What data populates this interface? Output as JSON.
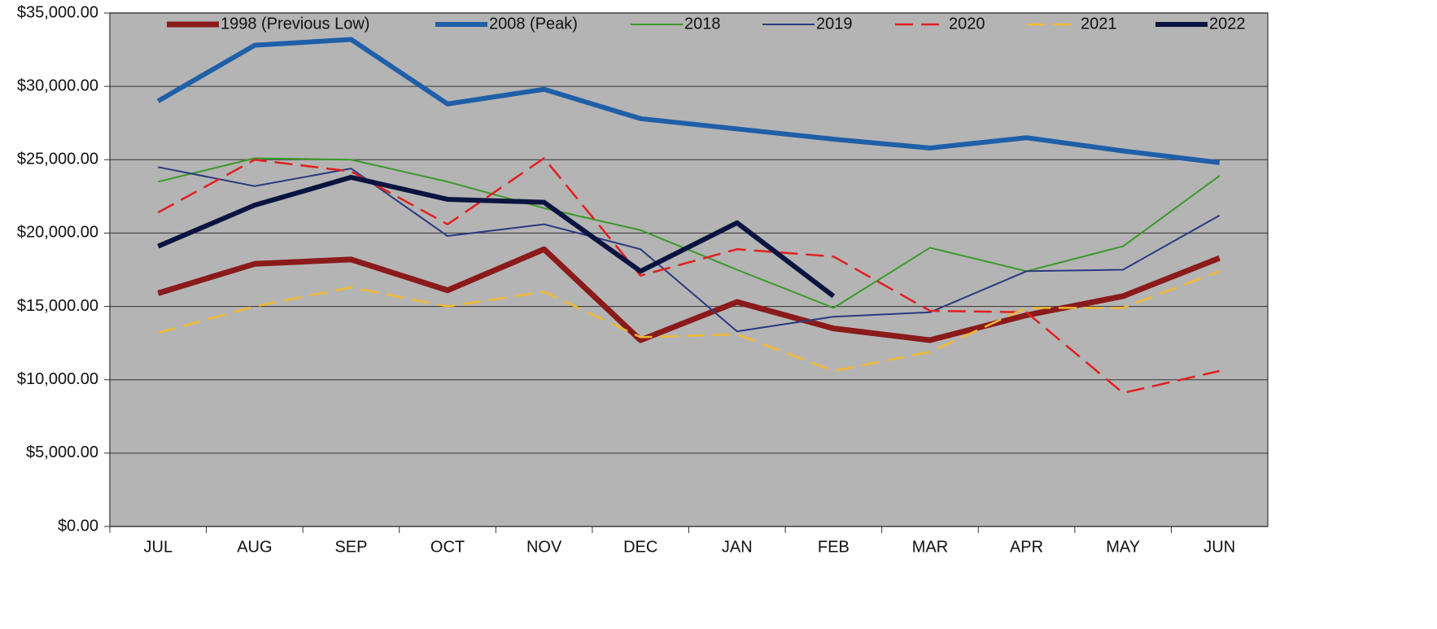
{
  "chart_data": {
    "type": "line",
    "categories": [
      "JUL",
      "AUG",
      "SEP",
      "OCT",
      "NOV",
      "DEC",
      "JAN",
      "FEB",
      "MAR",
      "APR",
      "MAY",
      "JUN"
    ],
    "series": [
      {
        "name": "1998 (Previous Low)",
        "color": "#8b1a1a",
        "width": 7,
        "dashed": false,
        "values": [
          15900,
          17900,
          18200,
          16100,
          18900,
          12700,
          15300,
          13500,
          12700,
          14400,
          15700,
          18300
        ]
      },
      {
        "name": "2008 (Peak)",
        "color": "#1f5fa8",
        "width": 6,
        "dashed": false,
        "values": [
          29000,
          32800,
          33200,
          28800,
          29800,
          27800,
          27100,
          26400,
          25800,
          26500,
          25600,
          24800
        ]
      },
      {
        "name": "2018",
        "color": "#3a9a2a",
        "width": 2,
        "dashed": false,
        "values": [
          23500,
          25100,
          25000,
          23500,
          21700,
          20200,
          17500,
          14900,
          19000,
          17400,
          19100,
          23900
        ]
      },
      {
        "name": "2019",
        "color": "#2b3a80",
        "width": 2,
        "dashed": false,
        "values": [
          24500,
          23200,
          24400,
          19800,
          20600,
          18900,
          13300,
          14300,
          14600,
          17400,
          17500,
          21200
        ]
      },
      {
        "name": "2020",
        "color": "#e02020",
        "width": 2.5,
        "dashed": true,
        "values": [
          21400,
          25000,
          24200,
          20600,
          25100,
          17100,
          18900,
          18400,
          14700,
          14600,
          9100,
          10600
        ]
      },
      {
        "name": "2021",
        "color": "#f0b830",
        "width": 2.5,
        "dashed": true,
        "values": [
          13200,
          15000,
          16300,
          15000,
          16000,
          12900,
          13100,
          10600,
          11900,
          14900,
          14900,
          17400
        ]
      },
      {
        "name": "2022",
        "color": "#0a1440",
        "width": 6,
        "dashed": false,
        "values": [
          19100,
          21900,
          23800,
          22300,
          22100,
          17400,
          20700,
          15700,
          null,
          null,
          null,
          null
        ]
      }
    ],
    "ylim": [
      0,
      35000
    ],
    "yticks": [
      {
        "value": 0,
        "label": "$0.00"
      },
      {
        "value": 5000,
        "label": "$5,000.00"
      },
      {
        "value": 10000,
        "label": "$10,000.00"
      },
      {
        "value": 15000,
        "label": "$15,000.00"
      },
      {
        "value": 20000,
        "label": "$20,000.00"
      },
      {
        "value": 25000,
        "label": "$25,000.00"
      },
      {
        "value": 30000,
        "label": "$30,000.00"
      },
      {
        "value": 35000,
        "label": "$35,000.00"
      }
    ],
    "grid": true,
    "legend": "top"
  }
}
